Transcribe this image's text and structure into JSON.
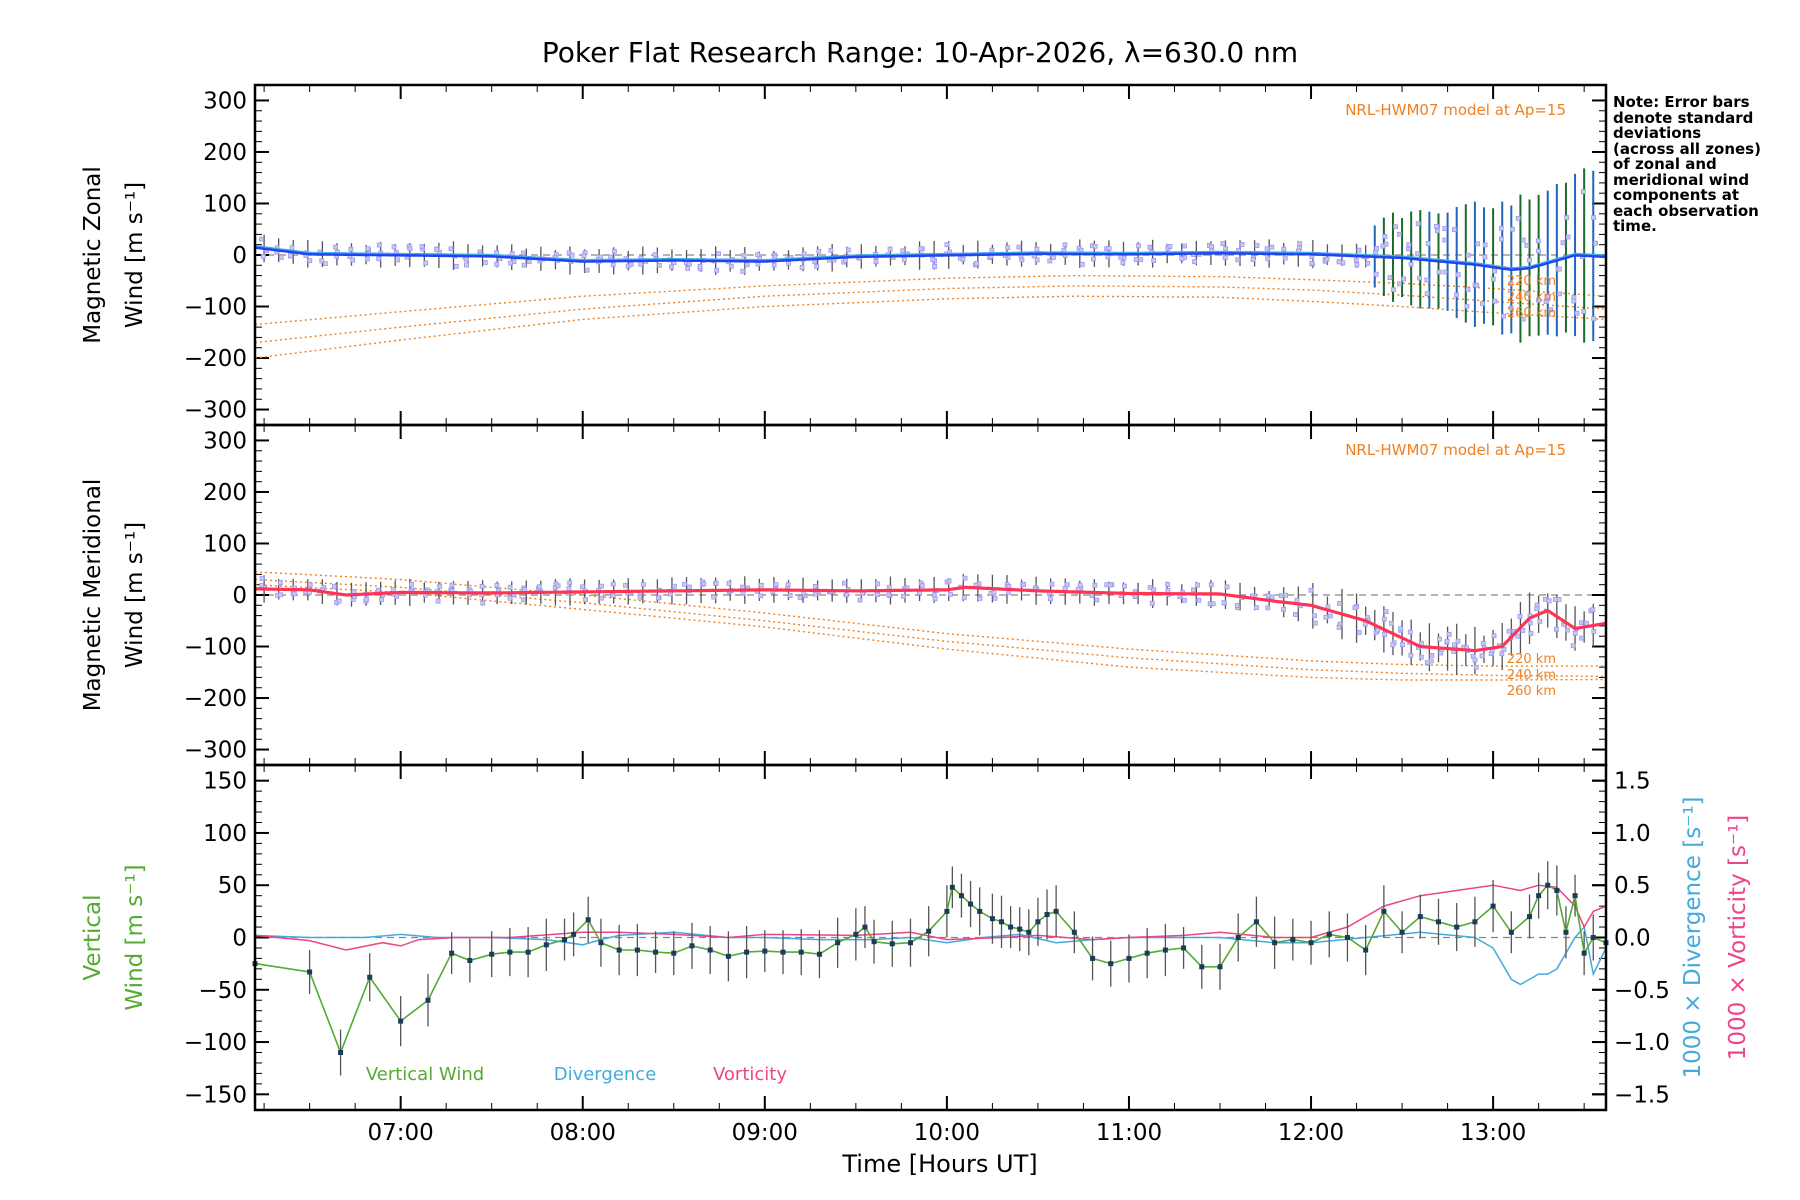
{
  "chart_data": {
    "type": "line",
    "title": "Poker Flat Research Range: 10-Apr-2026, λ=630.0 nm",
    "xlabel": "Time [Hours UT]",
    "xlim": [
      6.2,
      13.62
    ],
    "x_ticks": [
      7,
      8,
      9,
      10,
      11,
      12,
      13
    ],
    "x_tick_labels": [
      "07:00",
      "08:00",
      "09:00",
      "10:00",
      "11:00",
      "12:00",
      "13:00"
    ],
    "colors": {
      "zonal": "#2244ee",
      "zonal_light": "#44aaee",
      "meridional": "#ff3355",
      "model": "#f08020",
      "vertical": "#55aa33",
      "divergence": "#44aadd",
      "vorticity": "#ee4488",
      "samples": "#9999ee",
      "sample_fill": "#c8c8f2",
      "error_bars": "#555555",
      "zonal_err_dark": "#1a6a2a",
      "zonal_err_blue": "#2266bb",
      "zero_line": "#888888"
    },
    "note": [
      "Note: Error bars",
      "denote standard",
      "deviations",
      "(across all zones)",
      "of zonal and",
      "meridional wind",
      "components at",
      "each observation",
      "time."
    ],
    "panels": [
      {
        "id": "zonal",
        "ylabel": [
          "Magnetic Zonal",
          "Wind [m s⁻¹]"
        ],
        "ylim": [
          -330,
          330
        ],
        "y_ticks": [
          -300,
          -200,
          -100,
          0,
          100,
          200,
          300
        ],
        "y_tick_labels": [
          "−300",
          "−200",
          "−100",
          "0",
          "100",
          "200",
          "300"
        ],
        "model_note": "NRL-HWM07 model at Ap=15",
        "model_labels": [
          "220 km",
          "240 km",
          "260 km"
        ],
        "mean": {
          "x": [
            6.2,
            6.5,
            7.0,
            7.5,
            8.0,
            8.5,
            9.0,
            9.5,
            10.0,
            10.5,
            11.0,
            11.5,
            12.0,
            12.5,
            12.9,
            13.1,
            13.2,
            13.35,
            13.45,
            13.62
          ],
          "y": [
            15,
            2,
            0,
            -2,
            -12,
            -10,
            -12,
            -3,
            0,
            3,
            2,
            4,
            2,
            -5,
            -18,
            -28,
            -25,
            -10,
            0,
            -3
          ]
        },
        "model": [
          {
            "name": "220 km",
            "x": [
              6.2,
              7.0,
              8.0,
              9.0,
              10.0,
              10.7,
              11.5,
              12.0,
              12.5,
              13.0,
              13.62
            ],
            "y": [
              -135,
              -110,
              -80,
              -60,
              -45,
              -40,
              -42,
              -48,
              -55,
              -65,
              -80
            ]
          },
          {
            "name": "240 km",
            "x": [
              6.2,
              7.0,
              8.0,
              9.0,
              10.0,
              10.7,
              11.5,
              12.0,
              12.5,
              13.0,
              13.62
            ],
            "y": [
              -170,
              -140,
              -105,
              -80,
              -65,
              -60,
              -62,
              -68,
              -78,
              -90,
              -105
            ]
          },
          {
            "name": "260 km",
            "x": [
              6.2,
              7.0,
              8.0,
              9.0,
              10.0,
              10.7,
              11.5,
              12.0,
              12.5,
              13.0,
              13.62
            ],
            "y": [
              -200,
              -165,
              -125,
              -100,
              -85,
              -80,
              -82,
              -90,
              -100,
              -112,
              -125
            ]
          }
        ]
      },
      {
        "id": "meridional",
        "ylabel": [
          "Magnetic Meridional",
          "Wind [m s⁻¹]"
        ],
        "ylim": [
          -330,
          330
        ],
        "y_ticks": [
          -300,
          -200,
          -100,
          0,
          100,
          200,
          300
        ],
        "y_tick_labels": [
          "−300",
          "−200",
          "−100",
          "0",
          "100",
          "200",
          "300"
        ],
        "model_note": "NRL-HWM07 model at Ap=15",
        "model_labels": [
          "220 km",
          "240 km",
          "260 km"
        ],
        "mean": {
          "x": [
            6.2,
            6.5,
            6.7,
            7.0,
            7.5,
            8.0,
            8.5,
            9.0,
            9.5,
            10.0,
            10.1,
            10.5,
            11.0,
            11.5,
            11.8,
            12.0,
            12.3,
            12.6,
            12.9,
            13.05,
            13.2,
            13.3,
            13.45,
            13.62
          ],
          "y": [
            12,
            10,
            0,
            5,
            4,
            6,
            8,
            10,
            8,
            10,
            15,
            8,
            3,
            2,
            -12,
            -20,
            -50,
            -100,
            -108,
            -100,
            -45,
            -30,
            -65,
            -55
          ]
        },
        "model": [
          {
            "name": "220 km",
            "x": [
              6.2,
              7.0,
              8.0,
              9.0,
              10.0,
              11.0,
              12.0,
              12.5,
              13.0,
              13.62
            ],
            "y": [
              45,
              30,
              0,
              -35,
              -75,
              -105,
              -128,
              -135,
              -138,
              -138
            ]
          },
          {
            "name": "240 km",
            "x": [
              6.2,
              7.0,
              8.0,
              9.0,
              10.0,
              11.0,
              12.0,
              12.5,
              13.0,
              13.62
            ],
            "y": [
              30,
              15,
              -15,
              -50,
              -90,
              -122,
              -145,
              -152,
              -156,
              -158
            ]
          },
          {
            "name": "260 km",
            "x": [
              6.2,
              7.0,
              8.0,
              9.0,
              10.0,
              11.0,
              12.0,
              12.5,
              13.0,
              13.62
            ],
            "y": [
              20,
              5,
              -28,
              -62,
              -105,
              -140,
              -160,
              -165,
              -165,
              -164
            ]
          }
        ]
      },
      {
        "id": "vertical",
        "ylabel": [
          "Vertical",
          "Wind [m s⁻¹]"
        ],
        "ylim": [
          -165,
          165
        ],
        "y_ticks": [
          -150,
          -100,
          -50,
          0,
          50,
          100,
          150
        ],
        "y_tick_labels": [
          "−150",
          "−100",
          "−50",
          "0",
          "50",
          "100",
          "150"
        ],
        "ylim_right": [
          -1.65,
          1.65
        ],
        "y_ticks_right": [
          -1.5,
          -1.0,
          -0.5,
          0.0,
          0.5,
          1.0,
          1.5
        ],
        "y_tick_labels_right": [
          "−1.5",
          "−1.0",
          "−0.5",
          "0.0",
          "0.5",
          "1.0",
          "1.5"
        ],
        "ylabel_right_divergence": "1000 × Divergence [s⁻¹]",
        "ylabel_right_vorticity": "1000 × Vorticity [s⁻¹]",
        "legend": [
          "Vertical Wind",
          "Divergence",
          "Vorticity"
        ],
        "vertical_wind": {
          "x": [
            6.2,
            6.5,
            6.67,
            6.83,
            7.0,
            7.15,
            7.28,
            7.38,
            7.5,
            7.6,
            7.7,
            7.8,
            7.9,
            7.95,
            8.03,
            8.1,
            8.2,
            8.3,
            8.4,
            8.5,
            8.6,
            8.7,
            8.8,
            8.9,
            9.0,
            9.1,
            9.2,
            9.3,
            9.4,
            9.5,
            9.55,
            9.6,
            9.7,
            9.8,
            9.9,
            10.0,
            10.03,
            10.08,
            10.13,
            10.18,
            10.25,
            10.3,
            10.35,
            10.4,
            10.45,
            10.5,
            10.55,
            10.6,
            10.7,
            10.8,
            10.9,
            11.0,
            11.1,
            11.2,
            11.3,
            11.4,
            11.5,
            11.6,
            11.7,
            11.8,
            11.9,
            12.0,
            12.1,
            12.2,
            12.3,
            12.4,
            12.5,
            12.6,
            12.7,
            12.8,
            12.9,
            13.0,
            13.1,
            13.2,
            13.25,
            13.3,
            13.35,
            13.4,
            13.45,
            13.5,
            13.55,
            13.62
          ],
          "y": [
            -25,
            -33,
            -110,
            -38,
            -80,
            -60,
            -15,
            -22,
            -16,
            -14,
            -14,
            -7,
            -2,
            3,
            17,
            -5,
            -12,
            -12,
            -14,
            -15,
            -8,
            -12,
            -18,
            -14,
            -13,
            -14,
            -14,
            -16,
            -5,
            3,
            10,
            -4,
            -6,
            -5,
            6,
            25,
            48,
            40,
            32,
            25,
            18,
            15,
            10,
            8,
            5,
            15,
            22,
            25,
            5,
            -20,
            -25,
            -20,
            -15,
            -12,
            -10,
            -28,
            -28,
            0,
            15,
            -5,
            -2,
            -5,
            3,
            0,
            -12,
            25,
            5,
            20,
            15,
            10,
            15,
            30,
            5,
            20,
            40,
            50,
            45,
            5,
            40,
            -15,
            0,
            -5
          ]
        },
        "divergence": {
          "x": [
            6.2,
            6.5,
            6.8,
            7.0,
            7.2,
            7.5,
            7.8,
            8.0,
            8.1,
            8.2,
            8.5,
            8.8,
            9.0,
            9.3,
            9.6,
            9.8,
            10.0,
            10.2,
            10.4,
            10.6,
            10.8,
            11.0,
            11.5,
            11.8,
            12.0,
            12.3,
            12.6,
            12.9,
            13.0,
            13.05,
            13.1,
            13.15,
            13.25,
            13.3,
            13.35,
            13.45,
            13.5,
            13.55,
            13.62
          ],
          "y": [
            0.02,
            0.0,
            0.0,
            0.03,
            0.0,
            0.0,
            -0.02,
            -0.07,
            -0.02,
            0.02,
            0.05,
            0.0,
            0.0,
            -0.02,
            -0.02,
            0.0,
            -0.05,
            0.0,
            0.03,
            -0.05,
            -0.02,
            0.0,
            0.0,
            -0.05,
            -0.05,
            0.0,
            0.05,
            0.0,
            -0.1,
            -0.25,
            -0.4,
            -0.45,
            -0.35,
            -0.35,
            -0.3,
            0.0,
            0.1,
            -0.35,
            -0.1
          ]
        },
        "vorticity": {
          "x": [
            6.2,
            6.5,
            6.7,
            6.9,
            7.0,
            7.1,
            7.3,
            7.6,
            8.0,
            8.2,
            8.5,
            8.8,
            9.0,
            9.5,
            9.8,
            10.0,
            10.3,
            10.5,
            10.8,
            11.0,
            11.3,
            11.5,
            11.8,
            12.0,
            12.2,
            12.4,
            12.6,
            12.8,
            13.0,
            13.15,
            13.25,
            13.35,
            13.45,
            13.5,
            13.55,
            13.62
          ],
          "y": [
            0.02,
            -0.03,
            -0.12,
            -0.05,
            -0.08,
            -0.02,
            0.0,
            0.0,
            0.05,
            0.05,
            0.03,
            0.0,
            0.03,
            0.02,
            0.05,
            -0.02,
            0.0,
            0.02,
            -0.02,
            0.0,
            0.02,
            0.05,
            0.0,
            0.0,
            0.1,
            0.3,
            0.4,
            0.45,
            0.5,
            0.45,
            0.5,
            0.48,
            0.3,
            0.1,
            0.25,
            0.3
          ]
        }
      }
    ]
  }
}
